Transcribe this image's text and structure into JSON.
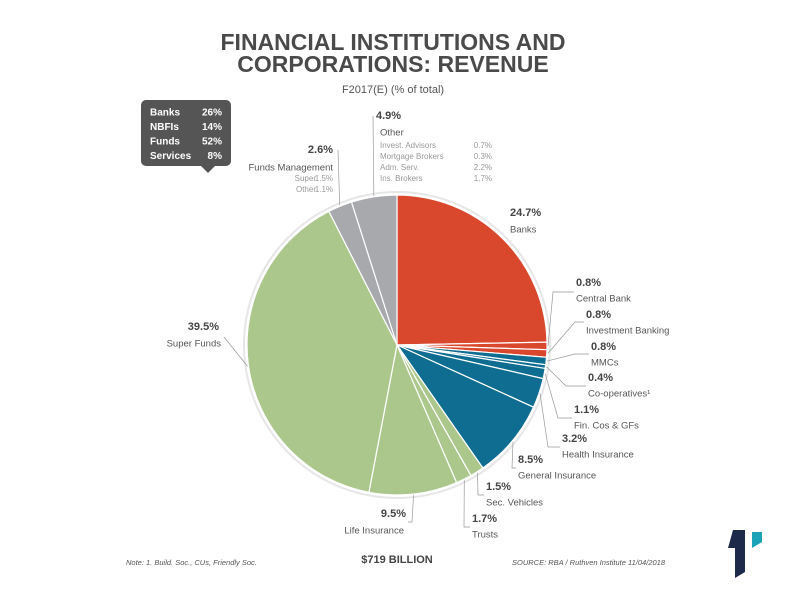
{
  "chart_data": {
    "type": "pie",
    "title": [
      "FINANCIAL INSTITUTIONS AND",
      "CORPORATIONS: REVENUE"
    ],
    "subtitle": "F2017(E) (% of total)",
    "categories": [
      "Banks",
      "Central Bank",
      "Investment Banking",
      "MMCs",
      "Co-operatives¹",
      "Fin. Cos & GFs",
      "Health Insurance",
      "General Insurance",
      "Sec. Vehicles",
      "Trusts",
      "Life Insurance",
      "Super Funds",
      "Funds Management",
      "Other"
    ],
    "values": [
      24.7,
      0.8,
      0.8,
      0.8,
      0.4,
      1.1,
      3.2,
      8.5,
      1.5,
      1.7,
      9.5,
      39.5,
      2.6,
      4.9
    ],
    "value_labels": [
      "24.7%",
      "0.8%",
      "0.8%",
      "0.8%",
      "0.4%",
      "1.1%",
      "3.2%",
      "8.5%",
      "1.5%",
      "1.7%",
      "9.5%",
      "39.5%",
      "2.6%",
      "4.9%"
    ],
    "colors": [
      "#d9482d",
      "#d9482d",
      "#d9482d",
      "#0e6d91",
      "#0e6d91",
      "#0e6d91",
      "#0e6d91",
      "#0e6d91",
      "#abc78c",
      "#abc78c",
      "#abc78c",
      "#abc78c",
      "#a7a9ac",
      "#a7a9ac"
    ],
    "funds_management_breakdown": [
      {
        "name": "Super",
        "label": "1.5%"
      },
      {
        "name": "Other",
        "label": "1.1%"
      }
    ],
    "other_breakdown": [
      {
        "name": "Invest. Advisors",
        "label": "0.7%"
      },
      {
        "name": "Mortgage Brokers",
        "label": "0.3%"
      },
      {
        "name": "Adm. Serv.",
        "label": "2.2%"
      },
      {
        "name": "Ins. Brokers",
        "label": "1.7%"
      }
    ],
    "summary": [
      {
        "name": "Banks",
        "label": "26%"
      },
      {
        "name": "NBFIs",
        "label": "14%"
      },
      {
        "name": "Funds",
        "label": "52%"
      },
      {
        "name": "Services",
        "label": "8%"
      }
    ],
    "total": "$719 BILLION",
    "note": "Note: 1. Build. Soc., CUs, Friendly Soc.",
    "source": "SOURCE: RBA / Ruthven Institute 11/04/2018"
  }
}
